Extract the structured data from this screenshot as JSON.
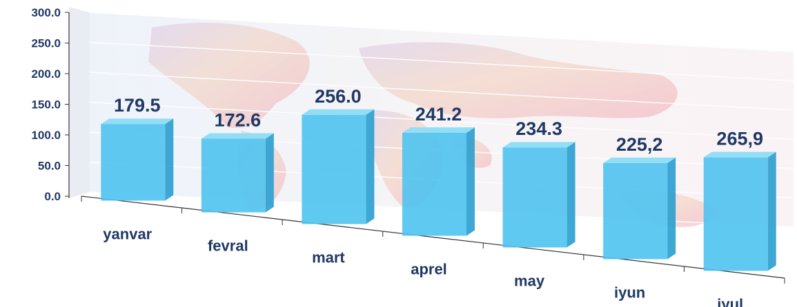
{
  "chart_data": {
    "type": "bar",
    "title": "",
    "xlabel": "",
    "ylabel": "",
    "ylim": [
      0,
      300
    ],
    "yticks": [
      "0.0",
      "50.0",
      "100.0",
      "150.0",
      "200.0",
      "250.0",
      "300.0"
    ],
    "categories": [
      "yanvar",
      "fevral",
      "mart",
      "aprel",
      "may",
      "iyun",
      "iyul"
    ],
    "values": [
      179.5,
      172.6,
      256.0,
      241.2,
      234.3,
      225.2,
      265.9
    ],
    "data_labels": [
      "179.5",
      "172.6",
      "256.0",
      "241.2",
      "234.3",
      "225,2",
      "265,9"
    ],
    "grid": true,
    "legend": "none",
    "colors": {
      "bar_front": "#4fc3f0",
      "bar_side": "#2f9fcf",
      "bar_top": "#8ddcf7",
      "text": "#1f3864",
      "axis": "#333333"
    },
    "background": "world-map-3d-wall"
  }
}
